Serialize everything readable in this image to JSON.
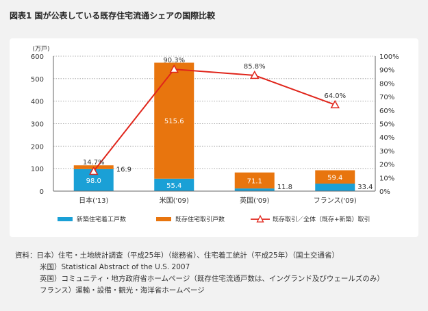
{
  "title": "図表1 国が公表している既存住宅流通シェアの国際比較",
  "chart_data": {
    "type": "bar",
    "stacked": true,
    "categories": [
      "日本('13)",
      "米国('09)",
      "英国('09)",
      "フランス('09)"
    ],
    "series": [
      {
        "name": "新築住宅着工戸数",
        "type": "bar",
        "values": [
          98.0,
          55.4,
          11.8,
          33.4
        ],
        "color": "#1aa0d6"
      },
      {
        "name": "既存住宅取引戸数",
        "type": "bar",
        "values": [
          16.9,
          515.6,
          71.1,
          59.4
        ],
        "color": "#e8750e"
      },
      {
        "name": "既存取引／全体（既存+新築）取引",
        "type": "line",
        "axis": "right",
        "values": [
          14.7,
          90.3,
          85.8,
          64.0
        ],
        "color": "#e0251b"
      }
    ],
    "value_labels": {
      "new": [
        "98.0",
        "55.4",
        "11.8",
        "33.4"
      ],
      "existing": [
        "16.9",
        "515.6",
        "71.1",
        "59.4"
      ],
      "share": [
        "14.7%",
        "90.3%",
        "85.8%",
        "64.0%"
      ]
    },
    "y_unit": "(万戸)",
    "ylim": [
      0,
      600
    ],
    "yticks": [
      "0",
      "100",
      "200",
      "300",
      "400",
      "500",
      "600"
    ],
    "y2lim": [
      0,
      100
    ],
    "y2ticks": [
      "0%",
      "10%",
      "20%",
      "30%",
      "40%",
      "50%",
      "60%",
      "70%",
      "80%",
      "90%",
      "100%"
    ],
    "grid": "horizontal-dotted",
    "legend_position": "bottom"
  },
  "notes": [
    "資料：日本）住宅・土地統計調査（平成25年）（総務省）、住宅着工統計（平成25年）（国土交通省）",
    "米国）Statistical Abstract of the U.S. 2007",
    "英国）コミュニティ・地方政府省ホームページ（既存住宅流通戸数は、イングランド及びウェールズのみ）",
    "フランス）運輸・設備・観光・海洋省ホームページ"
  ]
}
